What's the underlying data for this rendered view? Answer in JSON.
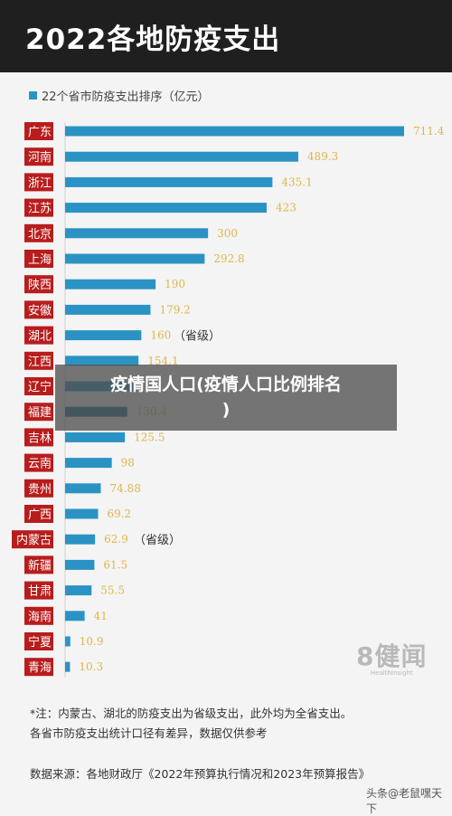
{
  "header": {
    "title": "2022各地防疫支出"
  },
  "overlay": {
    "line1": "疫情国人口(疫情人口比例排名",
    "line2": ")"
  },
  "chart_data": {
    "type": "bar",
    "orientation": "horizontal",
    "legend": "22个省市防疫支出排序（亿元）",
    "legend_color": "#2a93c4",
    "bar_color": "#2a93c4",
    "highlight_color": "#1a6c91",
    "label_bg_color": "#b81d1d",
    "value_color": "#e0b64a",
    "categories": [
      "广东",
      "河南",
      "浙江",
      "江苏",
      "北京",
      "上海",
      "陕西",
      "安徽",
      "湖北",
      "江西",
      "辽宁",
      "福建",
      "吉林",
      "云南",
      "贵州",
      "广西",
      "内蒙古",
      "新疆",
      "甘肃",
      "海南",
      "宁夏",
      "青海"
    ],
    "values": [
      711.4,
      489.3,
      435.1,
      423,
      300,
      292.8,
      190,
      179.2,
      160,
      154.1,
      142,
      130.4,
      125.5,
      98,
      74.88,
      69.2,
      62.9,
      61.5,
      55.5,
      41,
      10.9,
      10.3
    ],
    "value_labels": [
      "711.4",
      "489.3",
      "435.1",
      "423",
      "300",
      "292.8",
      "190",
      "179.2",
      "160",
      "154.1",
      "",
      "130.4",
      "125.5",
      "98",
      "74.88",
      "69.2",
      "62.9",
      "61.5",
      "55.5",
      "41",
      "10.9",
      "10.3"
    ],
    "annotations": {
      "湖北": "（省级）",
      "内蒙古": "（省级）"
    },
    "highlight": [
      "福建"
    ],
    "xlim": [
      0,
      711.4
    ]
  },
  "watermark": {
    "brand": "8健闻",
    "sub": "HealthInsight"
  },
  "notes": {
    "line1": "*注：内蒙古、湖北的防疫支出为省级支出，此外均为全省支出。",
    "line2": "各省市防疫支出统计口径有差异，数据仅供参考",
    "source": "数据来源：各地财政厅《2022年预算执行情况和2023年预算报告》"
  },
  "footer": {
    "text": "头条@老鼠嘿天下"
  }
}
